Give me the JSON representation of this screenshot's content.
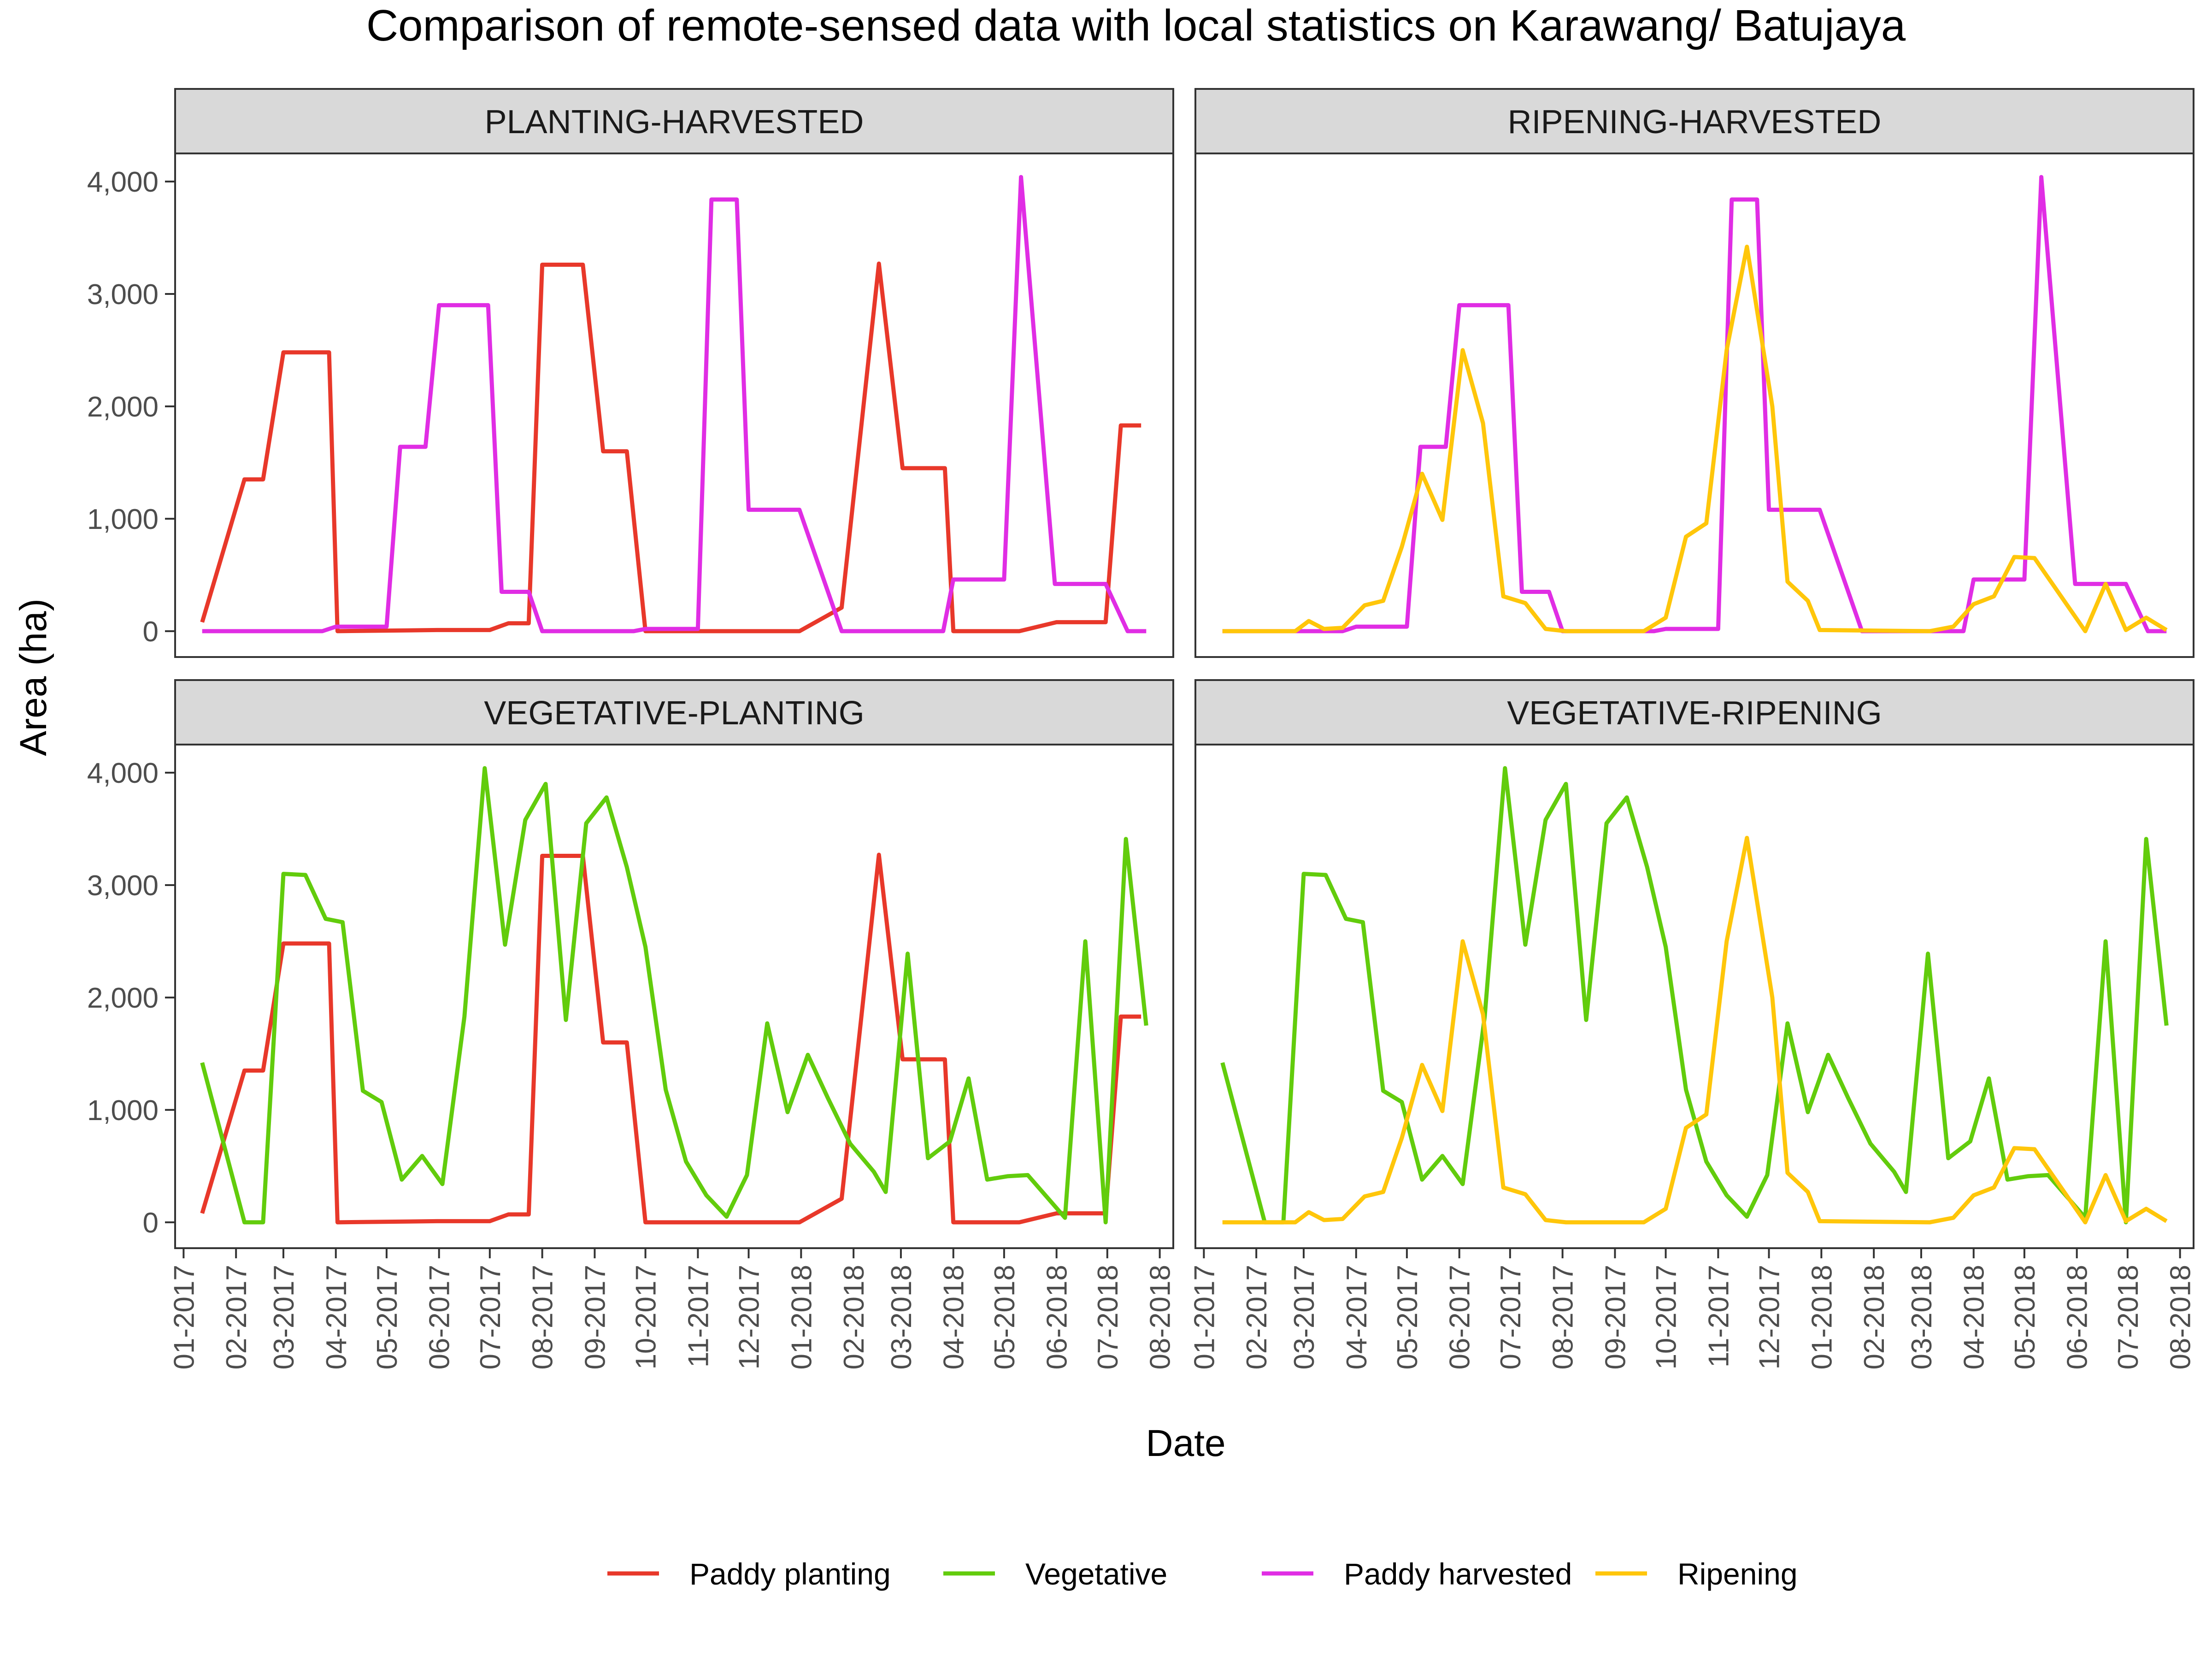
{
  "chart_data": {
    "type": "line",
    "title": "Comparison of remote-sensed data with local statistics on Karawang/ Batujaya",
    "xlabel": "Date",
    "ylabel": "Area (ha)",
    "x_domain": [
      "2016-12-27",
      "2018-08-09"
    ],
    "x_ticks": [
      "2017-01-01",
      "2017-02-01",
      "2017-03-01",
      "2017-04-01",
      "2017-05-01",
      "2017-06-01",
      "2017-07-01",
      "2017-08-01",
      "2017-09-01",
      "2017-10-01",
      "2017-11-01",
      "2017-12-01",
      "2018-01-01",
      "2018-02-01",
      "2018-03-01",
      "2018-04-01",
      "2018-05-01",
      "2018-06-01",
      "2018-07-01",
      "2018-08-01"
    ],
    "x_tick_labels": [
      "01-2017",
      "02-2017",
      "03-2017",
      "04-2017",
      "05-2017",
      "06-2017",
      "07-2017",
      "08-2017",
      "09-2017",
      "10-2017",
      "11-2017",
      "12-2017",
      "01-2018",
      "02-2018",
      "03-2018",
      "04-2018",
      "05-2018",
      "06-2018",
      "07-2018",
      "08-2018"
    ],
    "ylim": [
      -230,
      4250
    ],
    "y_ticks": [
      0,
      1000,
      2000,
      3000,
      4000
    ],
    "y_tick_labels": [
      "0",
      "1,000",
      "2,000",
      "3,000",
      "4,000"
    ],
    "grid": false,
    "legend_position": "bottom",
    "colors": {
      "Paddy planting": "#e8382a",
      "Vegetative": "#62cc0c",
      "Paddy harvested": "#e02de4",
      "Ripening": "#ffc60a"
    },
    "legend": [
      "Paddy planting",
      "Vegetative",
      "Paddy harvested",
      "Ripening"
    ],
    "series": [
      {
        "name": "Paddy planting",
        "points": [
          [
            "2017-01-12",
            80
          ],
          [
            "2017-02-06",
            1350
          ],
          [
            "2017-02-17",
            1350
          ],
          [
            "2017-03-01",
            2480
          ],
          [
            "2017-03-28",
            2480
          ],
          [
            "2017-04-02",
            0
          ],
          [
            "2017-05-31",
            10
          ],
          [
            "2017-07-01",
            10
          ],
          [
            "2017-07-12",
            70
          ],
          [
            "2017-07-24",
            70
          ],
          [
            "2017-08-01",
            3260
          ],
          [
            "2017-08-25",
            3260
          ],
          [
            "2017-09-06",
            1600
          ],
          [
            "2017-09-20",
            1600
          ],
          [
            "2017-10-01",
            0
          ],
          [
            "2017-12-31",
            0
          ],
          [
            "2018-01-25",
            210
          ],
          [
            "2018-02-16",
            3270
          ],
          [
            "2018-03-02",
            1450
          ],
          [
            "2018-03-27",
            1450
          ],
          [
            "2018-04-01",
            0
          ],
          [
            "2018-05-10",
            0
          ],
          [
            "2018-06-01",
            80
          ],
          [
            "2018-06-30",
            80
          ],
          [
            "2018-07-09",
            1830
          ],
          [
            "2018-07-21",
            1830
          ]
        ]
      },
      {
        "name": "Vegetative",
        "points": [
          [
            "2017-01-12",
            1420
          ],
          [
            "2017-02-06",
            0
          ],
          [
            "2017-02-17",
            0
          ],
          [
            "2017-03-01",
            3100
          ],
          [
            "2017-03-14",
            3090
          ],
          [
            "2017-03-26",
            2700
          ],
          [
            "2017-04-05",
            2670
          ],
          [
            "2017-04-17",
            1170
          ],
          [
            "2017-04-28",
            1070
          ],
          [
            "2017-05-10",
            380
          ],
          [
            "2017-05-22",
            590
          ],
          [
            "2017-06-03",
            340
          ],
          [
            "2017-06-16",
            1830
          ],
          [
            "2017-06-28",
            4040
          ],
          [
            "2017-07-10",
            2470
          ],
          [
            "2017-07-22",
            3580
          ],
          [
            "2017-08-03",
            3900
          ],
          [
            "2017-08-15",
            1800
          ],
          [
            "2017-08-27",
            3550
          ],
          [
            "2017-09-08",
            3780
          ],
          [
            "2017-09-20",
            3160
          ],
          [
            "2017-10-01",
            2450
          ],
          [
            "2017-10-13",
            1180
          ],
          [
            "2017-10-25",
            540
          ],
          [
            "2017-11-06",
            240
          ],
          [
            "2017-11-18",
            50
          ],
          [
            "2017-11-30",
            420
          ],
          [
            "2017-12-12",
            1770
          ],
          [
            "2017-12-24",
            980
          ],
          [
            "2018-01-05",
            1490
          ],
          [
            "2018-01-17",
            1100
          ],
          [
            "2018-01-30",
            700
          ],
          [
            "2018-02-13",
            450
          ],
          [
            "2018-02-20",
            270
          ],
          [
            "2018-03-05",
            2390
          ],
          [
            "2018-03-17",
            570
          ],
          [
            "2018-03-30",
            720
          ],
          [
            "2018-04-10",
            1280
          ],
          [
            "2018-04-21",
            380
          ],
          [
            "2018-05-03",
            410
          ],
          [
            "2018-05-15",
            420
          ],
          [
            "2018-06-06",
            40
          ],
          [
            "2018-06-18",
            2500
          ],
          [
            "2018-06-30",
            0
          ],
          [
            "2018-07-12",
            3410
          ],
          [
            "2018-07-24",
            1750
          ]
        ]
      },
      {
        "name": "Paddy harvested",
        "points": [
          [
            "2017-01-12",
            0
          ],
          [
            "2017-03-24",
            0
          ],
          [
            "2017-04-01",
            40
          ],
          [
            "2017-05-01",
            40
          ],
          [
            "2017-05-09",
            1640
          ],
          [
            "2017-05-24",
            1640
          ],
          [
            "2017-06-01",
            2900
          ],
          [
            "2017-06-30",
            2900
          ],
          [
            "2017-07-08",
            350
          ],
          [
            "2017-07-24",
            350
          ],
          [
            "2017-08-01",
            0
          ],
          [
            "2017-09-24",
            0
          ],
          [
            "2017-10-01",
            20
          ],
          [
            "2017-11-01",
            20
          ],
          [
            "2017-11-09",
            3840
          ],
          [
            "2017-11-24",
            3840
          ],
          [
            "2017-12-01",
            1080
          ],
          [
            "2017-12-31",
            1080
          ],
          [
            "2018-01-25",
            0
          ],
          [
            "2018-03-26",
            0
          ],
          [
            "2018-04-01",
            460
          ],
          [
            "2018-05-01",
            460
          ],
          [
            "2018-05-11",
            4040
          ],
          [
            "2018-05-31",
            420
          ],
          [
            "2018-06-30",
            420
          ],
          [
            "2018-07-13",
            0
          ],
          [
            "2018-07-24",
            0
          ]
        ]
      },
      {
        "name": "Ripening",
        "points": [
          [
            "2017-01-12",
            0
          ],
          [
            "2017-02-24",
            0
          ],
          [
            "2017-03-04",
            90
          ],
          [
            "2017-03-13",
            20
          ],
          [
            "2017-03-24",
            30
          ],
          [
            "2017-04-06",
            230
          ],
          [
            "2017-04-17",
            270
          ],
          [
            "2017-04-28",
            750
          ],
          [
            "2017-05-10",
            1400
          ],
          [
            "2017-05-22",
            990
          ],
          [
            "2017-06-03",
            2500
          ],
          [
            "2017-06-15",
            1850
          ],
          [
            "2017-06-27",
            310
          ],
          [
            "2017-07-10",
            250
          ],
          [
            "2017-07-22",
            20
          ],
          [
            "2017-08-03",
            0
          ],
          [
            "2017-09-18",
            0
          ],
          [
            "2017-10-01",
            120
          ],
          [
            "2017-10-13",
            840
          ],
          [
            "2017-10-25",
            960
          ],
          [
            "2017-11-06",
            2500
          ],
          [
            "2017-11-18",
            3420
          ],
          [
            "2017-12-03",
            2000
          ],
          [
            "2017-12-12",
            440
          ],
          [
            "2017-12-24",
            270
          ],
          [
            "2017-12-31",
            10
          ],
          [
            "2018-03-06",
            0
          ],
          [
            "2018-03-20",
            40
          ],
          [
            "2018-04-01",
            240
          ],
          [
            "2018-04-13",
            310
          ],
          [
            "2018-04-25",
            660
          ],
          [
            "2018-05-07",
            650
          ],
          [
            "2018-06-06",
            0
          ],
          [
            "2018-06-18",
            420
          ],
          [
            "2018-06-30",
            10
          ],
          [
            "2018-07-12",
            120
          ],
          [
            "2018-07-24",
            10
          ]
        ]
      }
    ],
    "panels": [
      {
        "label": "PLANTING-HARVESTED",
        "series": [
          "Paddy planting",
          "Paddy harvested"
        ]
      },
      {
        "label": "RIPENING-HARVESTED",
        "series": [
          "Paddy harvested",
          "Ripening"
        ]
      },
      {
        "label": "VEGETATIVE-PLANTING",
        "series": [
          "Paddy planting",
          "Vegetative"
        ]
      },
      {
        "label": "VEGETATIVE-RIPENING",
        "series": [
          "Vegetative",
          "Ripening"
        ]
      }
    ]
  }
}
